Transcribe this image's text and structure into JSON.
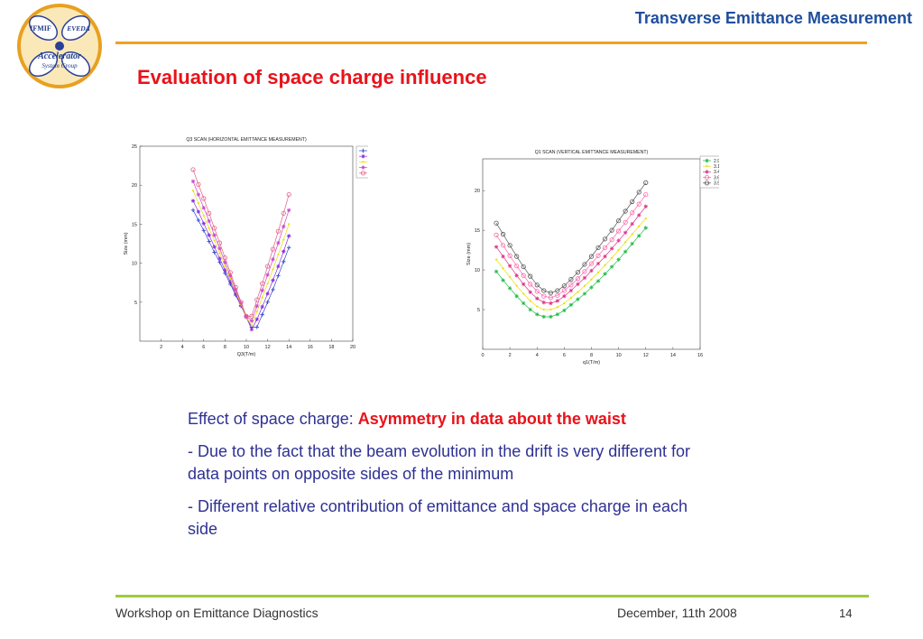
{
  "header": {
    "title": "Transverse Emittance Measurement"
  },
  "logo": {
    "top_left": "IFMIF",
    "top_right": "EVEDA",
    "name": "Accelerator",
    "subtitle": "System Group"
  },
  "slide": {
    "title": "Evaluation of space charge influence"
  },
  "body": {
    "lead": "Effect of space charge: ",
    "highlight": "Asymmetry in data about the waist",
    "bullet1": "- Due to the fact that the beam evolution in the drift is very different for data points on opposite sides of the minimum",
    "bullet2": "- Different relative contribution of emittance and space charge in each side"
  },
  "footer": {
    "left": "Workshop on Emittance Diagnostics",
    "date": "December, 11th 2008",
    "page": "14"
  },
  "chart_data": [
    {
      "type": "line",
      "title": "Q3 SCAN (HORIZONTAL EMITTANCE MEASUREMENT)",
      "xlabel": "Q3(T/m)",
      "ylabel": "Size (mm)",
      "xlim": [
        0,
        20
      ],
      "ylim": [
        0,
        25
      ],
      "xticks": [
        2,
        4,
        6,
        8,
        10,
        12,
        14,
        16,
        18,
        20
      ],
      "yticks": [
        5,
        10,
        15,
        20,
        25
      ],
      "legend_position": "top-right",
      "series": [
        {
          "name": "2.9",
          "color": "#3344cc",
          "marker": "+",
          "x": [
            5,
            5.5,
            6,
            6.5,
            7,
            7.5,
            8,
            8.5,
            9,
            9.5,
            10,
            10.5,
            11,
            11.5,
            12,
            12.5,
            13,
            13.5,
            14
          ],
          "y": [
            16.8,
            15.5,
            14.2,
            12.8,
            11.4,
            10.1,
            8.7,
            7.3,
            5.9,
            4.5,
            3.1,
            1.8,
            1.8,
            3.4,
            5,
            6.6,
            8.4,
            10.2,
            12
          ]
        },
        {
          "name": "3.15",
          "color": "#8a2be2",
          "marker": "*",
          "x": [
            5,
            5.5,
            6,
            6.5,
            7,
            7.5,
            8,
            8.5,
            9,
            9.5,
            10,
            10.5,
            11,
            11.5,
            12,
            12.5,
            13,
            13.5,
            14
          ],
          "y": [
            18,
            16.6,
            15.1,
            13.6,
            12.1,
            10.6,
            9.1,
            7.6,
            6.1,
            4.6,
            3.1,
            1.5,
            2.8,
            4.4,
            6.1,
            7.8,
            9.6,
            11.5,
            13.5
          ]
        },
        {
          "name": "3.4",
          "color": "#e6e000",
          "marker": ".",
          "x": [
            5,
            5.5,
            6,
            6.5,
            7,
            7.5,
            8,
            8.5,
            9,
            9.5,
            10,
            10.5,
            11,
            11.5,
            12,
            12.5,
            13,
            13.5,
            14
          ],
          "y": [
            19.3,
            17.7,
            16.1,
            14.5,
            12.9,
            11.3,
            9.6,
            8,
            6.4,
            4.7,
            3.1,
            2,
            3.8,
            5.6,
            7.4,
            9.2,
            11.1,
            13,
            15
          ]
        },
        {
          "name": "3.65",
          "color": "#cc44cc",
          "marker": "*",
          "x": [
            5,
            5.5,
            6,
            6.5,
            7,
            7.5,
            8,
            8.5,
            9,
            9.5,
            10,
            10.5,
            11,
            11.5,
            12,
            12.5,
            13,
            13.5,
            14
          ],
          "y": [
            20.5,
            18.8,
            17.1,
            15.4,
            13.6,
            11.9,
            10.1,
            8.4,
            6.6,
            4.9,
            3.2,
            2.6,
            4.5,
            6.5,
            8.5,
            10.5,
            12.6,
            14.7,
            16.8
          ]
        },
        {
          "name": "3.9",
          "color": "#e06080",
          "marker": "o",
          "x": [
            5,
            5.5,
            6,
            6.5,
            7,
            7.5,
            8,
            8.5,
            9,
            9.5,
            10,
            10.5,
            11,
            11.5,
            12,
            12.5,
            13,
            13.5,
            14
          ],
          "y": [
            22,
            20.1,
            18.3,
            16.4,
            14.5,
            12.6,
            10.7,
            8.8,
            6.9,
            5,
            3.2,
            3.2,
            5.3,
            7.4,
            9.6,
            11.8,
            14.1,
            16.4,
            18.8
          ]
        }
      ]
    },
    {
      "type": "line",
      "title": "Q1 SCAN (VERTICAL EMITTANCE MEASUREMENT)",
      "xlabel": "q1(T/m)",
      "ylabel": "Size (mm)",
      "xlim": [
        0,
        16
      ],
      "ylim": [
        0,
        24
      ],
      "xticks": [
        0,
        2,
        4,
        6,
        8,
        10,
        12,
        14,
        16
      ],
      "yticks": [
        5,
        10,
        15,
        20
      ],
      "legend_position": "top-right",
      "series": [
        {
          "name": "2.9",
          "color": "#22bb44",
          "marker": "*",
          "x": [
            1,
            1.5,
            2,
            2.5,
            3,
            3.5,
            4,
            4.5,
            5,
            5.5,
            6,
            6.5,
            7,
            7.5,
            8,
            8.5,
            9,
            9.5,
            10,
            10.5,
            11,
            11.5,
            12
          ],
          "y": [
            9.8,
            8.7,
            7.7,
            6.7,
            5.8,
            5,
            4.4,
            4.1,
            4.1,
            4.4,
            4.9,
            5.6,
            6.3,
            7,
            7.8,
            8.6,
            9.5,
            10.4,
            11.3,
            12.3,
            13.3,
            14.3,
            15.3
          ]
        },
        {
          "name": "3.15",
          "color": "#e6e000",
          "marker": ".",
          "x": [
            1,
            1.5,
            2,
            2.5,
            3,
            3.5,
            4,
            4.5,
            5,
            5.5,
            6,
            6.5,
            7,
            7.5,
            8,
            8.5,
            9,
            9.5,
            10,
            10.5,
            11,
            11.5,
            12
          ],
          "y": [
            11.3,
            10.2,
            9.1,
            8,
            7,
            6.1,
            5.4,
            5,
            5,
            5.3,
            5.8,
            6.5,
            7.2,
            8,
            8.8,
            9.7,
            10.6,
            11.5,
            12.5,
            13.5,
            14.5,
            15.5,
            16.5
          ]
        },
        {
          "name": "3.4",
          "color": "#dd3388",
          "marker": "*",
          "x": [
            1,
            1.5,
            2,
            2.5,
            3,
            3.5,
            4,
            4.5,
            5,
            5.5,
            6,
            6.5,
            7,
            7.5,
            8,
            8.5,
            9,
            9.5,
            10,
            10.5,
            11,
            11.5,
            12
          ],
          "y": [
            12.9,
            11.7,
            10.5,
            9.3,
            8.2,
            7.2,
            6.4,
            5.9,
            5.8,
            6.1,
            6.7,
            7.4,
            8.2,
            9,
            9.9,
            10.8,
            11.7,
            12.7,
            13.7,
            14.7,
            15.8,
            16.9,
            18
          ]
        },
        {
          "name": "3.65",
          "color": "#ff66aa",
          "marker": "o",
          "x": [
            1,
            1.5,
            2,
            2.5,
            3,
            3.5,
            4,
            4.5,
            5,
            5.5,
            6,
            6.5,
            7,
            7.5,
            8,
            8.5,
            9,
            9.5,
            10,
            10.5,
            11,
            11.5,
            12
          ],
          "y": [
            14.4,
            13.1,
            11.8,
            10.5,
            9.3,
            8.2,
            7.3,
            6.7,
            6.5,
            6.8,
            7.4,
            8.1,
            8.9,
            9.8,
            10.8,
            11.8,
            12.8,
            13.8,
            14.9,
            16,
            17.2,
            18.3,
            19.5
          ]
        },
        {
          "name": "3.9",
          "color": "#555555",
          "marker": "o",
          "x": [
            1,
            1.5,
            2,
            2.5,
            3,
            3.5,
            4,
            4.5,
            5,
            5.5,
            6,
            6.5,
            7,
            7.5,
            8,
            8.5,
            9,
            9.5,
            10,
            10.5,
            11,
            11.5,
            12
          ],
          "y": [
            15.9,
            14.5,
            13.1,
            11.7,
            10.4,
            9.2,
            8.1,
            7.4,
            7.1,
            7.4,
            8,
            8.8,
            9.7,
            10.7,
            11.7,
            12.8,
            13.9,
            15,
            16.2,
            17.4,
            18.6,
            19.8,
            21
          ]
        }
      ]
    }
  ]
}
